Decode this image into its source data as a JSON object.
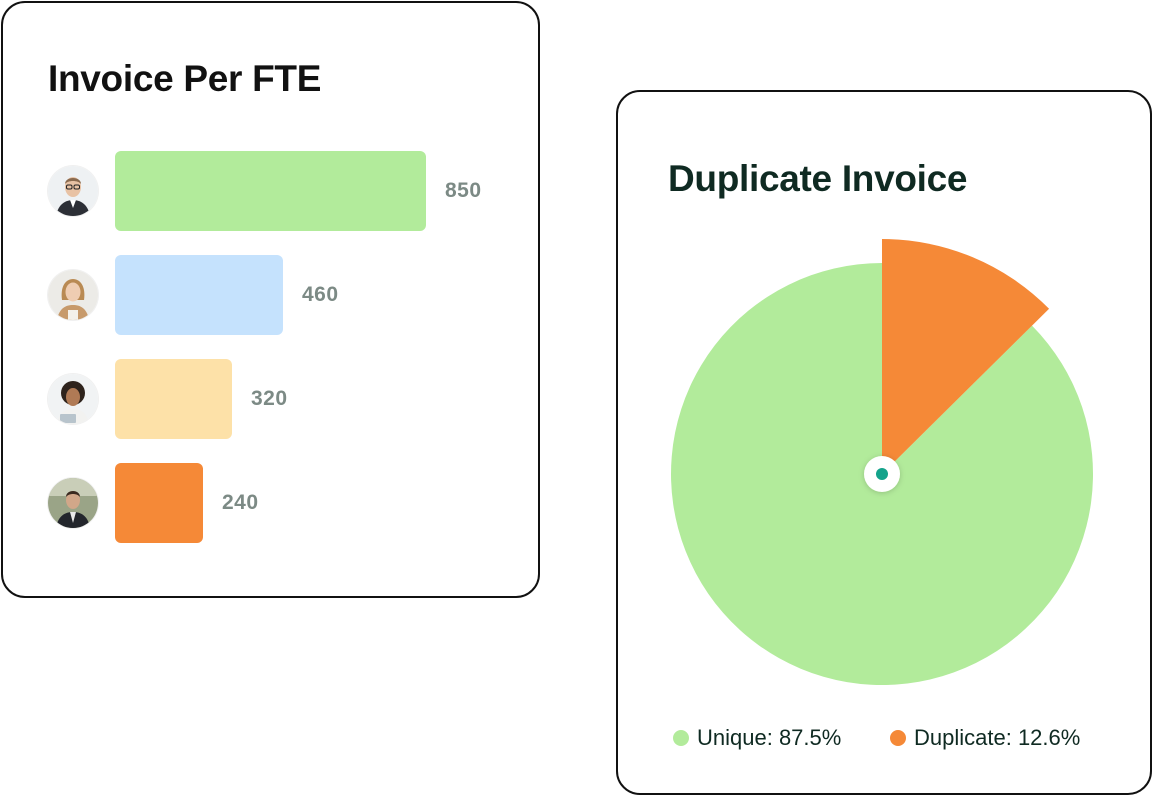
{
  "colors": {
    "green": "#b2eb9b",
    "blue": "#c5e2fd",
    "yellow": "#fde1a8",
    "orange": "#f58937",
    "teal": "#14a38b"
  },
  "chart_data": [
    {
      "type": "bar",
      "orientation": "horizontal",
      "title": "Invoice Per FTE",
      "categories": [
        "person-1",
        "person-2",
        "person-3",
        "person-4"
      ],
      "values": [
        850,
        460,
        320,
        240
      ],
      "value_labels": [
        "850",
        "460",
        "320",
        "240"
      ],
      "bar_colors": [
        "#b2eb9b",
        "#c5e2fd",
        "#fde1a8",
        "#f58937"
      ],
      "avatar_icons": [
        "man-glasses-avatar",
        "woman-blonde-avatar",
        "woman-curly-avatar",
        "man-suit-avatar"
      ],
      "xlim": [
        0,
        850
      ],
      "grid": false,
      "xlabel": "",
      "ylabel": ""
    },
    {
      "type": "pie",
      "title": "Duplicate Invoice",
      "slices": [
        {
          "name": "Unique",
          "value": 87.5,
          "label": "Unique: 87.5%",
          "color": "#b2eb9b"
        },
        {
          "name": "Duplicate",
          "value": 12.6,
          "label": "Duplicate: 12.6%",
          "color": "#f58937"
        }
      ],
      "highlighted_slice": "Duplicate",
      "legend_position": "bottom"
    }
  ]
}
